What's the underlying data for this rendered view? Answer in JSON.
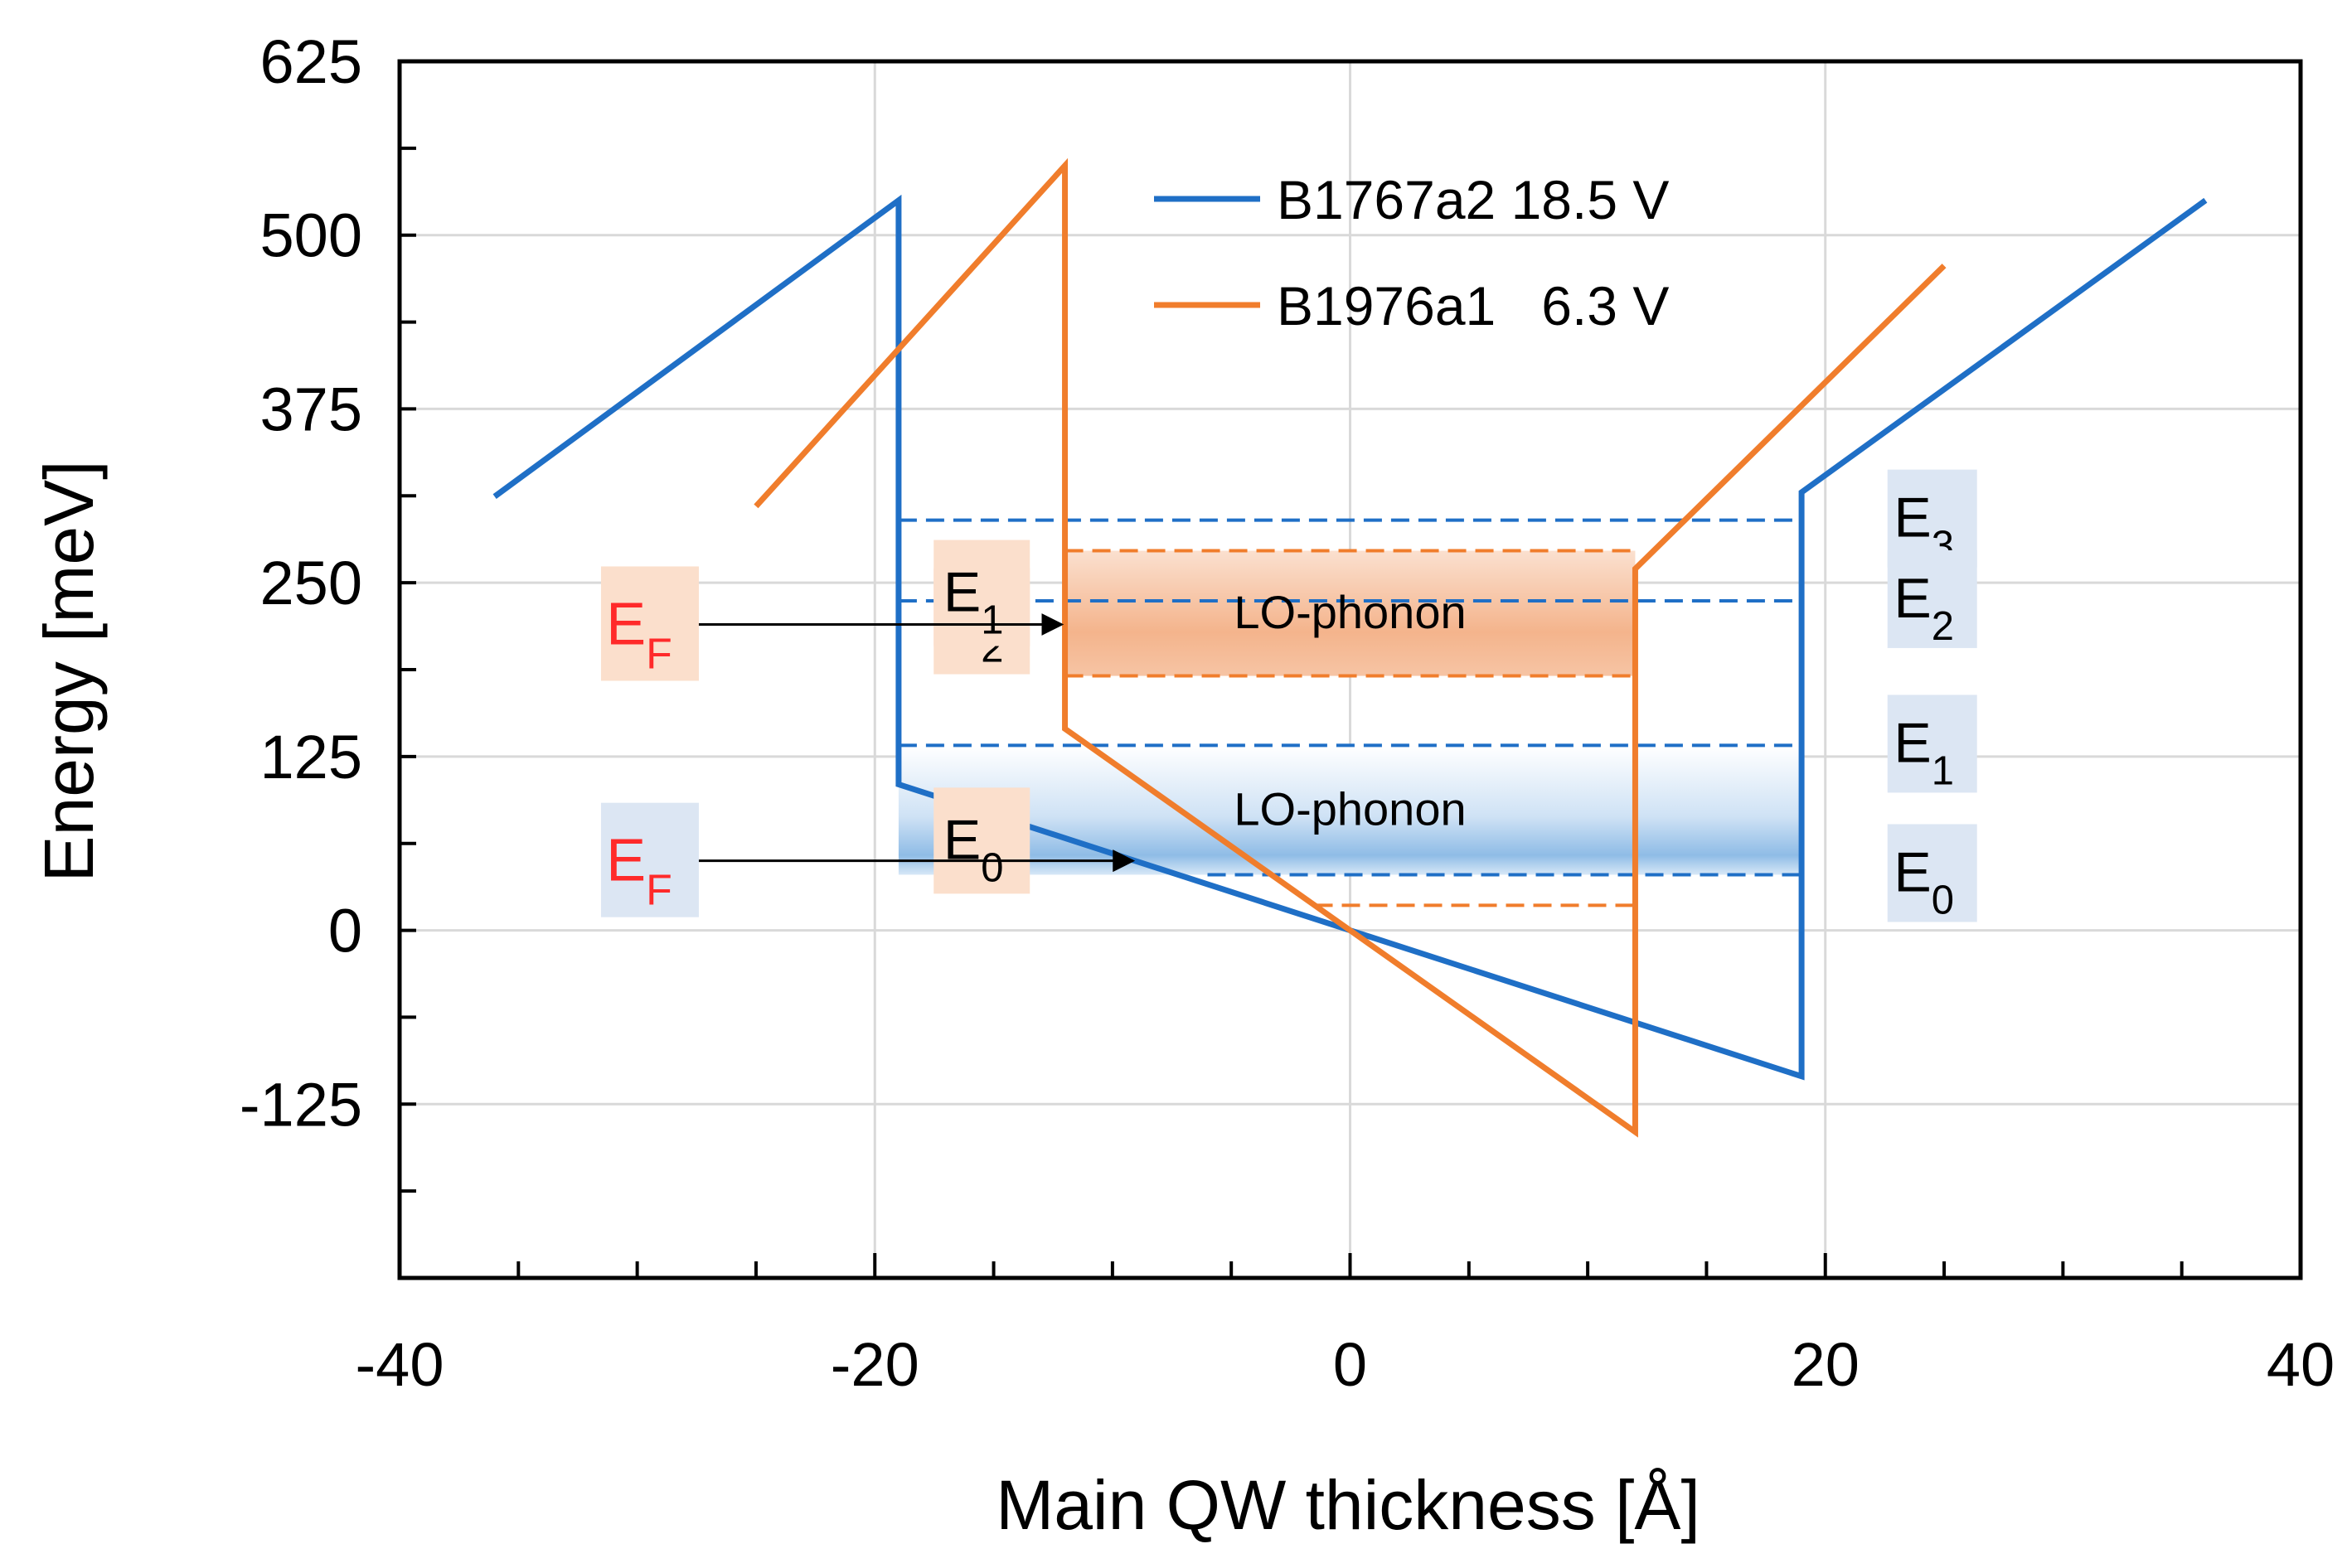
{
  "chart_data": {
    "type": "line",
    "title": "",
    "xlabel": "Main QW thickness [Å]",
    "ylabel": "Energy [meV]",
    "xlim": [
      -40,
      40
    ],
    "ylim": [
      -250,
      625
    ],
    "x_major_ticks": [
      -40,
      -20,
      0,
      20,
      40
    ],
    "x_tick_labels": [
      "-40",
      "-20",
      "0",
      "20",
      "40"
    ],
    "y_major_ticks": [
      625,
      500,
      375,
      250,
      125,
      0,
      -125
    ],
    "y_tick_labels": [
      "625",
      "500",
      "375",
      "250",
      "125",
      "0",
      "-125"
    ],
    "grid": true,
    "legend_position": "top-center",
    "series": [
      {
        "name": "B1767a2 18.5 V",
        "color": "#1f6fc6",
        "x": [
          -36,
          -19,
          -19,
          0,
          19,
          19,
          36
        ],
        "y": [
          312,
          525,
          105,
          0,
          -105,
          315,
          525
        ]
      },
      {
        "name": "B1976a1   6.3 V",
        "color": "#f07d2c",
        "x": [
          -25,
          -12,
          -12,
          0,
          12,
          12,
          25
        ],
        "y": [
          305,
          550,
          145,
          0,
          -145,
          260,
          478
        ]
      }
    ],
    "energy_levels": [
      {
        "series": "B1767a2 18.5 V",
        "label": "E3",
        "base": "E",
        "sub": "3",
        "energy": 295,
        "x_range": [
          -19,
          19
        ]
      },
      {
        "series": "B1767a2 18.5 V",
        "label": "E2",
        "base": "E",
        "sub": "2",
        "energy": 237,
        "x_range": [
          -19,
          19
        ]
      },
      {
        "series": "B1767a2 18.5 V",
        "label": "E1",
        "base": "E",
        "sub": "1",
        "energy": 133,
        "x_range": [
          -19,
          19
        ]
      },
      {
        "series": "B1767a2 18.5 V",
        "label": "E0",
        "base": "E",
        "sub": "0",
        "energy": 40,
        "x_range": [
          -6,
          19
        ]
      },
      {
        "series": "B1976a1   6.3 V",
        "label": "E2",
        "base": "E",
        "sub": "2",
        "energy": 273,
        "x_range": [
          -12,
          12
        ]
      },
      {
        "series": "B1976a1   6.3 V",
        "label": "E1",
        "base": "E",
        "sub": "1",
        "energy": 183,
        "x_range": [
          -12,
          12
        ]
      },
      {
        "series": "B1976a1   6.3 V",
        "label": "E0",
        "base": "E",
        "sub": "0",
        "energy": 18,
        "x_range": [
          -1.5,
          12
        ]
      }
    ],
    "bands": [
      {
        "label": "LO-phonon",
        "series": "B1976a1   6.3 V",
        "color": "#f07d2c",
        "y_range": [
          183,
          273
        ],
        "x_range": [
          -12,
          12
        ]
      },
      {
        "label": "LO-phonon",
        "series": "B1767a2 18.5 V",
        "color": "#1f6fc6",
        "y_range": [
          40,
          133
        ],
        "x_range": [
          -19,
          19
        ]
      }
    ],
    "fermi_markers": [
      {
        "label": "EF",
        "base": "E",
        "sub": "F",
        "series": "B1976a1   6.3 V",
        "energy": 220,
        "arrow_to_x": -12
      },
      {
        "label": "EF",
        "base": "E",
        "sub": "F",
        "series": "B1767a2 18.5 V",
        "energy": 50,
        "arrow_to_x": -9
      }
    ]
  }
}
